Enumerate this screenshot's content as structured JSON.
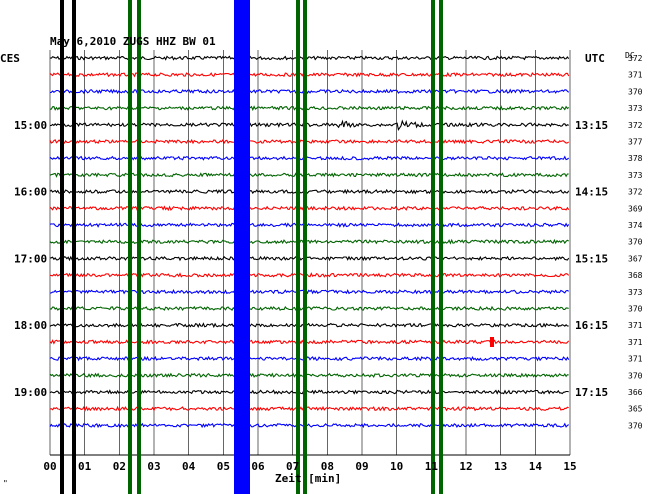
{
  "header": {
    "title": "May 6,2010   ZUGS HHZ BW 01"
  },
  "left_label": "CES",
  "right_label": "UTC",
  "dc_label": "DC",
  "time_axis": {
    "label": "Zeit [min]",
    "ticks": [
      "00",
      "01",
      "02",
      "03",
      "04",
      "05",
      "06",
      "07",
      "08",
      "09",
      "10",
      "11",
      "12",
      "13",
      "14",
      "15"
    ]
  },
  "local_hours": [
    "15:00",
    "16:00",
    "17:00",
    "18:00",
    "19:00"
  ],
  "utc_hours": [
    "13:15",
    "14:15",
    "15:15",
    "16:15",
    "17:15"
  ],
  "dc_values": [
    "372",
    "371",
    "370",
    "373",
    "372",
    "377",
    "378",
    "373",
    "372",
    "369",
    "374",
    "370",
    "367",
    "368",
    "373",
    "370",
    "371",
    "371",
    "371",
    "370",
    "366",
    "365",
    "370"
  ],
  "trace_colors": [
    "#000000",
    "#ff0000",
    "#0000ff",
    "#006400"
  ],
  "small_mark": "\"",
  "colors": {
    "black": "#000000",
    "red": "#ff0000",
    "blue": "#0000ff",
    "green": "#006400",
    "grid": "#000000"
  }
}
